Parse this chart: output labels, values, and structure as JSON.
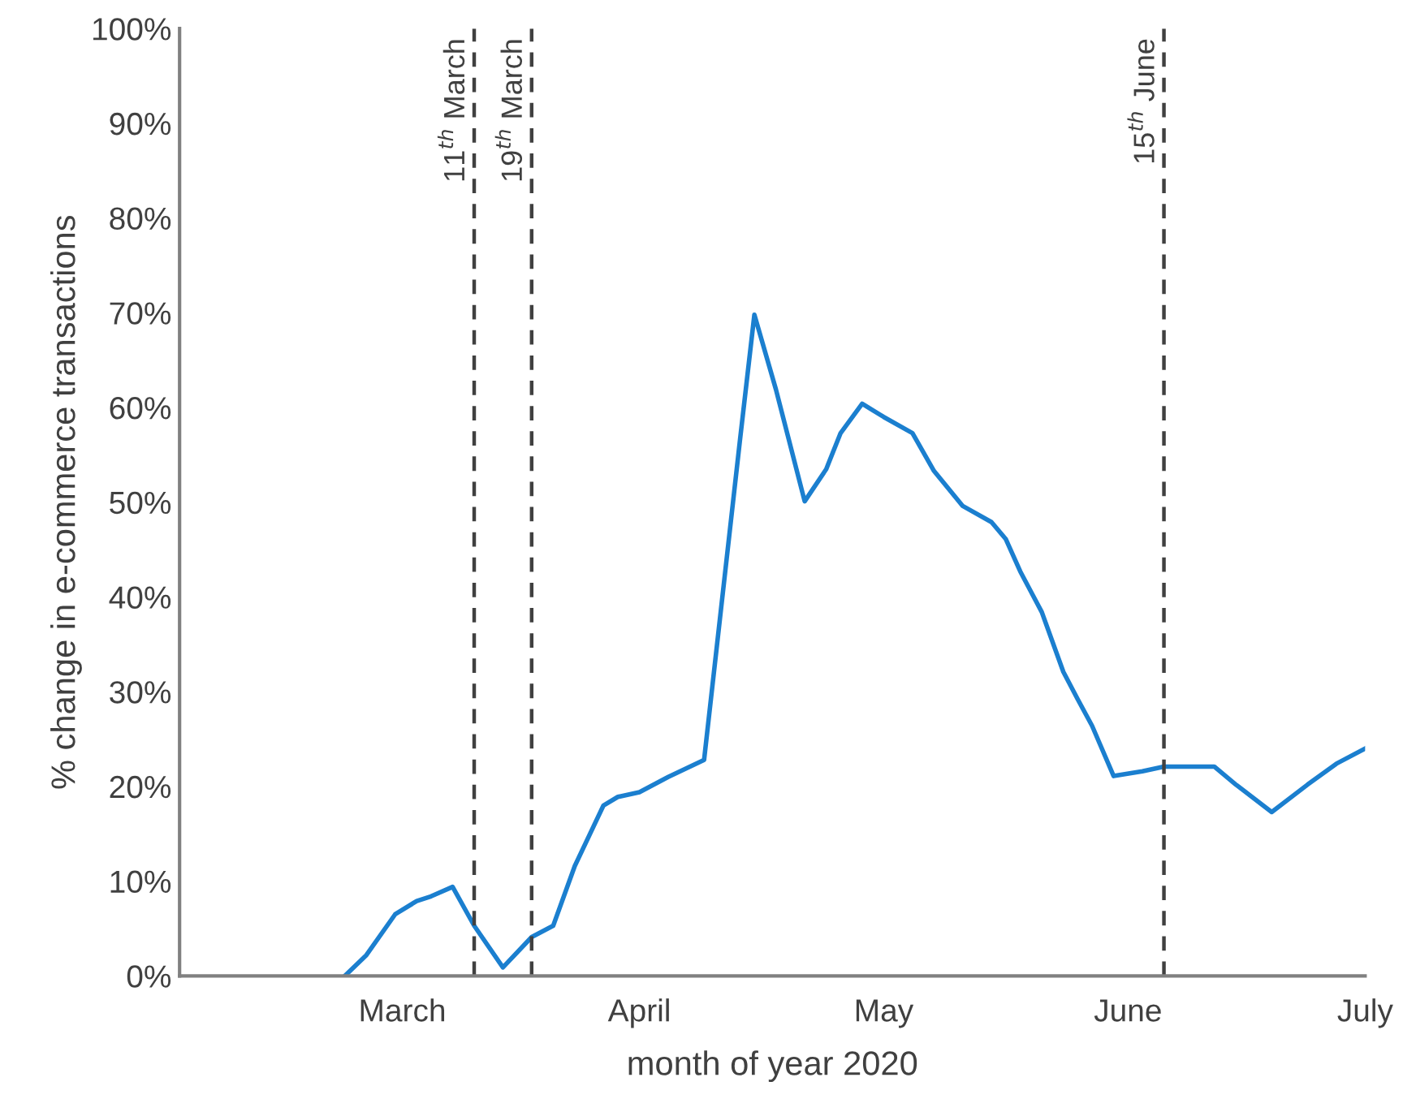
{
  "chart_data": {
    "type": "line",
    "xlabel": "month of year 2020",
    "ylabel": "% change in e-commerce transactions",
    "x": [
      "2020-02-22",
      "2020-02-25",
      "2020-02-29",
      "2020-03-03",
      "2020-03-05",
      "2020-03-08",
      "2020-03-11",
      "2020-03-15",
      "2020-03-19",
      "2020-03-22",
      "2020-03-25",
      "2020-03-29",
      "2020-03-31",
      "2020-04-03",
      "2020-04-07",
      "2020-04-12",
      "2020-04-17",
      "2020-04-19",
      "2020-04-22",
      "2020-04-26",
      "2020-04-29",
      "2020-05-01",
      "2020-05-04",
      "2020-05-07",
      "2020-05-11",
      "2020-05-14",
      "2020-05-18",
      "2020-05-22",
      "2020-05-24",
      "2020-05-26",
      "2020-05-29",
      "2020-06-01",
      "2020-06-03",
      "2020-06-05",
      "2020-06-08",
      "2020-06-12",
      "2020-06-15",
      "2020-06-22",
      "2020-06-25",
      "2020-06-30",
      "2020-07-05",
      "2020-07-09",
      "2020-07-13"
    ],
    "series": [
      {
        "color": "#1b7fcf",
        "values": [
          0,
          2.2,
          6.5,
          7.9,
          8.4,
          9.4,
          5.3,
          0.9,
          4.1,
          5.3,
          11.6,
          18.0,
          18.9,
          19.4,
          21.0,
          22.8,
          56.6,
          69.8,
          61.9,
          50.1,
          53.5,
          57.3,
          60.4,
          59.0,
          57.3,
          53.3,
          49.6,
          47.9,
          46.1,
          42.7,
          38.4,
          32.1,
          29.2,
          26.4,
          21.1,
          21.6,
          22.1,
          22.1,
          20.2,
          17.3,
          20.2,
          22.4,
          24.0
        ]
      }
    ],
    "xlim": [
      "2020-01-30",
      "2020-07-13"
    ],
    "xticks": [
      {
        "value": "2020-03-01",
        "label": "March"
      },
      {
        "value": "2020-04-03",
        "label": "April"
      },
      {
        "value": "2020-05-07",
        "label": "May"
      },
      {
        "value": "2020-06-10",
        "label": "June"
      },
      {
        "value": "2020-07-13",
        "label": "July"
      }
    ],
    "ylim": [
      0,
      100
    ],
    "yticks": [
      {
        "value": 0,
        "label": "0%"
      },
      {
        "value": 10,
        "label": "10%"
      },
      {
        "value": 20,
        "label": "20%"
      },
      {
        "value": 30,
        "label": "30%"
      },
      {
        "value": 40,
        "label": "40%"
      },
      {
        "value": 50,
        "label": "50%"
      },
      {
        "value": 60,
        "label": "60%"
      },
      {
        "value": 70,
        "label": "70%"
      },
      {
        "value": 80,
        "label": "80%"
      },
      {
        "value": 90,
        "label": "90%"
      },
      {
        "value": 100,
        "label": "100%"
      }
    ],
    "ref_lines": [
      {
        "axis": "x",
        "value": "2020-03-11",
        "label": "11$^{th}$ March",
        "color": "#404040",
        "line_style": "dashed"
      },
      {
        "axis": "x",
        "value": "2020-03-19",
        "label": "19$^{th}$ March",
        "color": "#404040",
        "line_style": "dashed"
      },
      {
        "axis": "x",
        "value": "2020-06-15",
        "label": "15$^{th}$ June",
        "color": "#404040",
        "line_style": "dashed"
      }
    ],
    "line_style": "solid",
    "marker": "none"
  }
}
